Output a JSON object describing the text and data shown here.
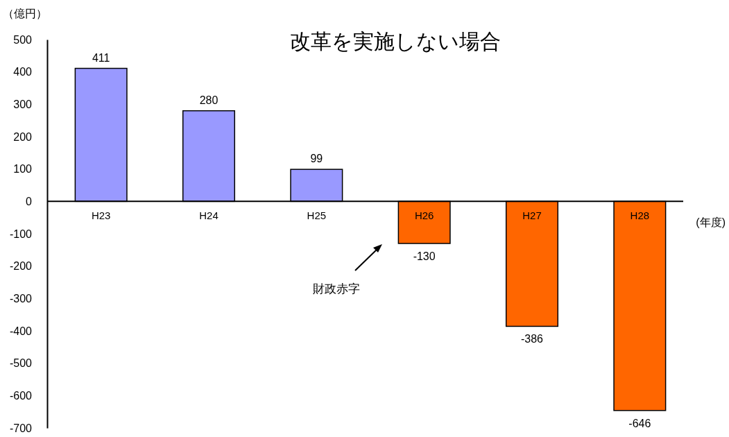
{
  "chart_data": {
    "type": "bar",
    "title": "改革を実施しない場合",
    "ylabel": "（億円）",
    "xlabel": "(年度)",
    "categories": [
      "H23",
      "H24",
      "H25",
      "H26",
      "H27",
      "H28"
    ],
    "values": [
      411,
      280,
      99,
      -130,
      -386,
      -646
    ],
    "colors": [
      "#9999ff",
      "#9999ff",
      "#9999ff",
      "#ff6600",
      "#ff6600",
      "#ff6600"
    ],
    "ylim": [
      -700,
      500
    ],
    "yticks": [
      -700,
      -600,
      -500,
      -400,
      -300,
      -200,
      -100,
      0,
      100,
      200,
      300,
      400,
      500
    ],
    "grid": false,
    "data_labels": true,
    "annotations": [
      "財政赤字"
    ]
  }
}
